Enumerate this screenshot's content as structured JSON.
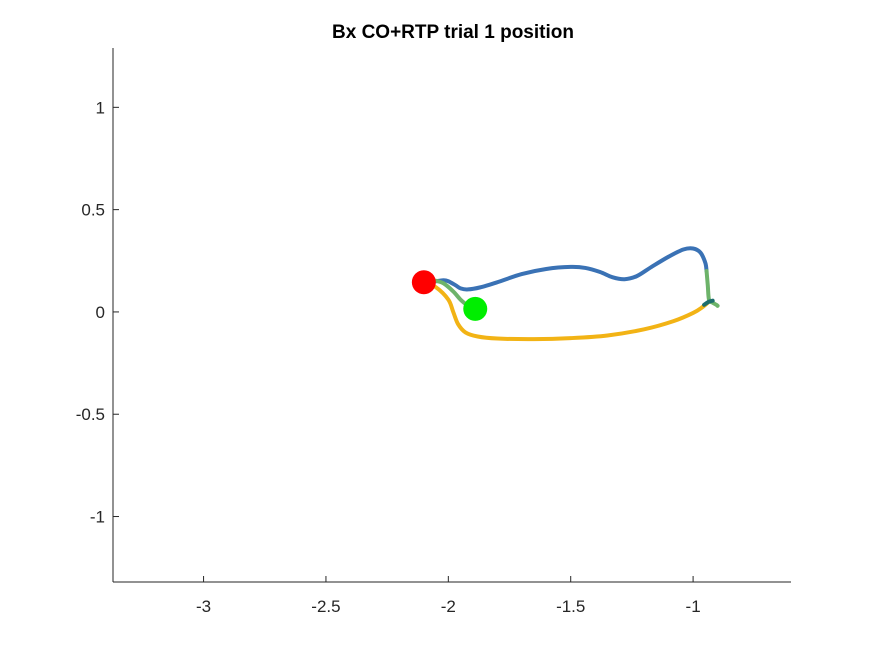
{
  "chart_data": {
    "type": "line",
    "title": "Bx  CO+RTP trial 1 position",
    "xlabel": "",
    "ylabel": "",
    "xlim": [
      -3.37,
      -0.6
    ],
    "ylim": [
      -1.32,
      1.29
    ],
    "xticks": [
      -3,
      -2.5,
      -2,
      -1.5,
      -1
    ],
    "yticks": [
      -1,
      -0.5,
      0,
      0.5,
      1
    ],
    "xtick_labels": [
      "-3",
      "-2.5",
      "-2",
      "-1.5",
      "-1"
    ],
    "ytick_labels": [
      "-1",
      "-0.5",
      "0",
      "0.5",
      "1"
    ],
    "grid": false,
    "box": "left-bottom",
    "series": [
      {
        "color": "#3A72B5",
        "points": [
          [
            -2.05,
            0.15
          ],
          [
            -2.02,
            0.155
          ],
          [
            -2.0,
            0.15
          ],
          [
            -1.97,
            0.13
          ],
          [
            -1.95,
            0.115
          ],
          [
            -1.92,
            0.11
          ],
          [
            -1.87,
            0.12
          ],
          [
            -1.8,
            0.145
          ],
          [
            -1.7,
            0.185
          ],
          [
            -1.6,
            0.21
          ],
          [
            -1.5,
            0.22
          ],
          [
            -1.44,
            0.215
          ],
          [
            -1.38,
            0.195
          ],
          [
            -1.33,
            0.17
          ],
          [
            -1.28,
            0.16
          ],
          [
            -1.23,
            0.175
          ],
          [
            -1.17,
            0.22
          ],
          [
            -1.1,
            0.27
          ],
          [
            -1.04,
            0.305
          ],
          [
            -1.0,
            0.31
          ],
          [
            -0.97,
            0.29
          ],
          [
            -0.95,
            0.24
          ],
          [
            -0.945,
            0.2
          ]
        ]
      },
      {
        "color": "#6DB36A",
        "points": [
          [
            -0.945,
            0.2
          ],
          [
            -0.94,
            0.13
          ],
          [
            -0.935,
            0.06
          ],
          [
            -0.92,
            0.045
          ],
          [
            -0.905,
            0.035
          ],
          [
            -0.9,
            0.03
          ]
        ]
      },
      {
        "color": "#6DB36A",
        "points": [
          [
            -2.06,
            0.155
          ],
          [
            -2.02,
            0.14
          ],
          [
            -1.98,
            0.1
          ],
          [
            -1.95,
            0.06
          ],
          [
            -1.92,
            0.03
          ],
          [
            -1.9,
            0.015
          ]
        ]
      },
      {
        "color": "#F2B315",
        "points": [
          [
            -2.1,
            0.145
          ],
          [
            -2.05,
            0.12
          ],
          [
            -2.0,
            0.06
          ],
          [
            -1.98,
            0.0
          ],
          [
            -1.96,
            -0.06
          ],
          [
            -1.93,
            -0.1
          ],
          [
            -1.88,
            -0.12
          ],
          [
            -1.8,
            -0.13
          ],
          [
            -1.65,
            -0.133
          ],
          [
            -1.5,
            -0.128
          ],
          [
            -1.35,
            -0.115
          ],
          [
            -1.2,
            -0.085
          ],
          [
            -1.08,
            -0.045
          ],
          [
            -1.0,
            -0.005
          ],
          [
            -0.96,
            0.025
          ],
          [
            -0.94,
            0.045
          ]
        ]
      },
      {
        "color": "#1E6E6E",
        "points": [
          [
            -0.955,
            0.035
          ],
          [
            -0.935,
            0.05
          ],
          [
            -0.92,
            0.055
          ]
        ]
      }
    ],
    "markers": [
      {
        "name": "start",
        "x": -2.1,
        "y": 0.145,
        "color": "#FF0000"
      },
      {
        "name": "target",
        "x": -1.89,
        "y": 0.015,
        "color": "#00EE00"
      }
    ]
  }
}
